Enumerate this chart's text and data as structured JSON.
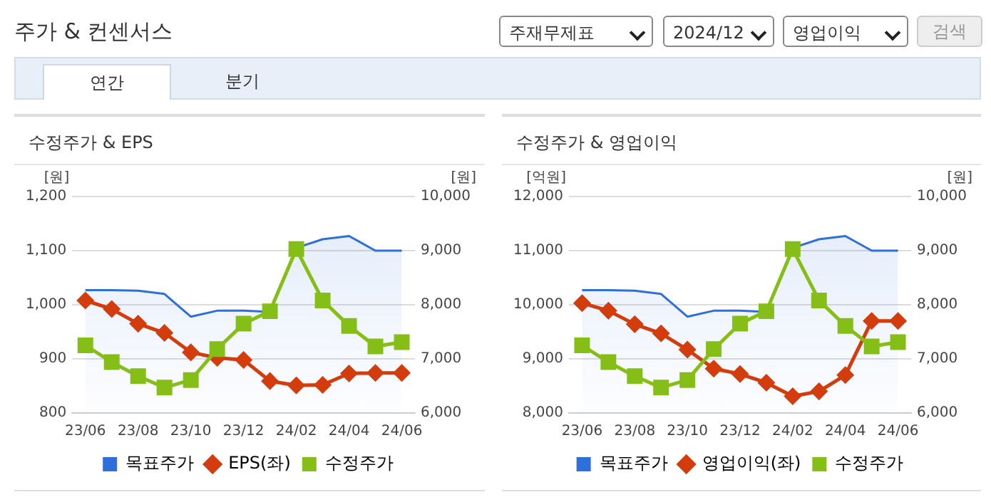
{
  "chart_data": [
    {
      "type": "other",
      "title": "주가 & 컨센서스",
      "annotations": [
        "주재무제표",
        "2024/12",
        "영업이익",
        "검색",
        "연간",
        "분기"
      ]
    },
    {
      "type": "line",
      "title": "수정주가 & EPS",
      "ylabel": "[원]",
      "y2label": "[원]",
      "categories": [
        "23/06",
        null,
        "23/08",
        null,
        "23/10",
        null,
        "23/12",
        null,
        "24/02",
        null,
        "24/04",
        null,
        "24/06"
      ],
      "series": [
        {
          "name": "목표주가",
          "type": "area",
          "axis": "y2",
          "color": "#2f6fdc",
          "marker": "none",
          "values": [
            8270,
            8270,
            8260,
            8200,
            7780,
            7890,
            7890,
            7870,
            9050,
            9210,
            9270,
            9000,
            9000
          ]
        },
        {
          "name": "EPS(좌)",
          "type": "line",
          "color": "#d33c0c",
          "marker": "diamond",
          "values": [
            1008,
            992,
            965,
            948,
            912,
            902,
            898,
            859,
            851,
            852,
            873,
            874,
            874
          ]
        },
        {
          "name": "수정주가",
          "type": "line",
          "axis": "y2",
          "color": "#86be18",
          "marker": "square",
          "values": [
            7250,
            6940,
            6680,
            6470,
            6610,
            7180,
            7650,
            7880,
            9030,
            8080,
            7610,
            7230,
            7310
          ]
        }
      ],
      "ylim": [
        800,
        1200
      ],
      "yticks": [
        800,
        900,
        {
          "value": 1000,
          "label": "1,000"
        },
        {
          "value": 1100,
          "label": "1,100"
        },
        {
          "value": 1200,
          "label": "1,200"
        }
      ],
      "y2lim": [
        6000,
        10000
      ],
      "y2ticks": [
        {
          "value": 6000,
          "label": "6,000"
        },
        {
          "value": 7000,
          "label": "7,000"
        },
        {
          "value": 8000,
          "label": "8,000"
        },
        {
          "value": 9000,
          "label": "9,000"
        },
        {
          "value": 10000,
          "label": "10,000"
        }
      ],
      "grid": "y",
      "legend": "bottom"
    },
    {
      "type": "line",
      "title": "수정주가 & 영업이익",
      "ylabel": "[억원]",
      "y2label": "[원]",
      "categories": [
        "23/06",
        null,
        "23/08",
        null,
        "23/10",
        null,
        "23/12",
        null,
        "24/02",
        null,
        "24/04",
        null,
        "24/06"
      ],
      "series": [
        {
          "name": "목표주가",
          "type": "area",
          "axis": "y2",
          "color": "#2f6fdc",
          "marker": "none",
          "values": [
            8270,
            8270,
            8260,
            8200,
            7780,
            7890,
            7890,
            7870,
            9050,
            9210,
            9270,
            9000,
            9000
          ]
        },
        {
          "name": "영업이익(좌)",
          "type": "line",
          "color": "#d33c0c",
          "marker": "diamond",
          "values": [
            10030,
            9890,
            9640,
            9470,
            9170,
            8820,
            8720,
            8560,
            8310,
            8400,
            8700,
            9700,
            9700
          ]
        },
        {
          "name": "수정주가",
          "type": "line",
          "axis": "y2",
          "color": "#86be18",
          "marker": "square",
          "values": [
            7250,
            6940,
            6680,
            6470,
            6610,
            7180,
            7650,
            7880,
            9030,
            8080,
            7610,
            7230,
            7310
          ]
        }
      ],
      "ylim": [
        8000,
        12000
      ],
      "yticks": [
        {
          "value": 8000,
          "label": "8,000"
        },
        {
          "value": 9000,
          "label": "9,000"
        },
        {
          "value": 10000,
          "label": "10,000"
        },
        {
          "value": 11000,
          "label": "11,000"
        },
        {
          "value": 12000,
          "label": "12,000"
        }
      ],
      "y2lim": [
        6000,
        10000
      ],
      "y2ticks": [
        {
          "value": 6000,
          "label": "6,000"
        },
        {
          "value": 7000,
          "label": "7,000"
        },
        {
          "value": 8000,
          "label": "8,000"
        },
        {
          "value": 9000,
          "label": "9,000"
        },
        {
          "value": 10000,
          "label": "10,000"
        }
      ],
      "grid": "y",
      "legend": "bottom"
    }
  ]
}
